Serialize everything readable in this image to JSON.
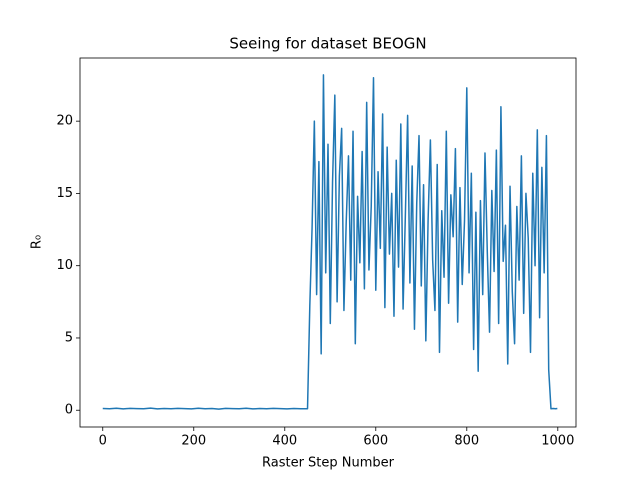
{
  "chart_data": {
    "type": "line",
    "title": "Seeing for dataset BEOGN",
    "xlabel": "Raster Step Number",
    "ylabel": "R₀",
    "color": "#1f77b4",
    "xlim": [
      -50,
      1040
    ],
    "ylim": [
      -1.16,
      24.37
    ],
    "xticks": [
      0,
      200,
      400,
      600,
      800,
      1000
    ],
    "yticks": [
      0,
      5,
      10,
      15,
      20
    ],
    "x": [
      0,
      15,
      30,
      45,
      60,
      75,
      90,
      105,
      120,
      135,
      150,
      165,
      180,
      195,
      210,
      225,
      240,
      255,
      270,
      285,
      300,
      315,
      330,
      345,
      360,
      375,
      390,
      405,
      420,
      435,
      445,
      450,
      455,
      460,
      465,
      470,
      475,
      480,
      485,
      490,
      495,
      500,
      505,
      510,
      515,
      520,
      525,
      530,
      535,
      540,
      545,
      550,
      555,
      560,
      565,
      570,
      575,
      580,
      585,
      590,
      595,
      600,
      605,
      610,
      615,
      620,
      625,
      630,
      635,
      640,
      645,
      650,
      655,
      660,
      665,
      670,
      675,
      680,
      685,
      690,
      695,
      700,
      705,
      710,
      715,
      720,
      725,
      730,
      735,
      740,
      745,
      750,
      755,
      760,
      765,
      770,
      775,
      780,
      785,
      790,
      795,
      800,
      805,
      810,
      815,
      820,
      825,
      830,
      835,
      840,
      845,
      850,
      855,
      860,
      865,
      870,
      875,
      880,
      885,
      890,
      895,
      900,
      905,
      910,
      915,
      920,
      925,
      930,
      935,
      940,
      945,
      950,
      955,
      960,
      965,
      970,
      975,
      980,
      985,
      990,
      995,
      999
    ],
    "values": [
      0.12,
      0.1,
      0.14,
      0.09,
      0.13,
      0.11,
      0.1,
      0.15,
      0.09,
      0.12,
      0.1,
      0.13,
      0.11,
      0.09,
      0.14,
      0.1,
      0.12,
      0.08,
      0.13,
      0.11,
      0.1,
      0.14,
      0.09,
      0.12,
      0.1,
      0.13,
      0.11,
      0.09,
      0.12,
      0.1,
      0.1,
      0.1,
      7.2,
      12.6,
      20.0,
      8.0,
      17.2,
      3.9,
      23.2,
      9.5,
      18.4,
      6.0,
      15.8,
      21.8,
      7.5,
      16.2,
      19.5,
      6.9,
      13.0,
      17.6,
      9.0,
      19.3,
      4.6,
      14.8,
      10.2,
      17.9,
      8.4,
      21.3,
      9.7,
      14.1,
      23.0,
      8.3,
      16.5,
      11.2,
      20.5,
      7.1,
      18.2,
      10.8,
      15.0,
      6.5,
      17.3,
      9.9,
      19.8,
      7.0,
      13.5,
      20.4,
      8.8,
      16.9,
      5.6,
      14.3,
      19.0,
      8.6,
      15.6,
      4.8,
      13.2,
      18.7,
      10.4,
      6.9,
      17.0,
      4.0,
      13.8,
      9.2,
      19.3,
      7.4,
      14.9,
      12.0,
      18.1,
      6.1,
      15.4,
      8.7,
      13.1,
      22.3,
      9.5,
      16.4,
      4.2,
      13.7,
      2.7,
      14.5,
      8.0,
      17.8,
      11.0,
      5.4,
      15.2,
      9.6,
      18.0,
      6.0,
      21.0,
      10.3,
      12.8,
      3.2,
      15.5,
      8.2,
      4.6,
      14.1,
      9.0,
      17.6,
      6.7,
      15.0,
      11.9,
      4.0,
      16.4,
      10.0,
      19.4,
      6.4,
      16.8,
      9.5,
      19.0,
      2.8,
      0.1,
      0.12,
      0.1,
      0.12
    ]
  }
}
